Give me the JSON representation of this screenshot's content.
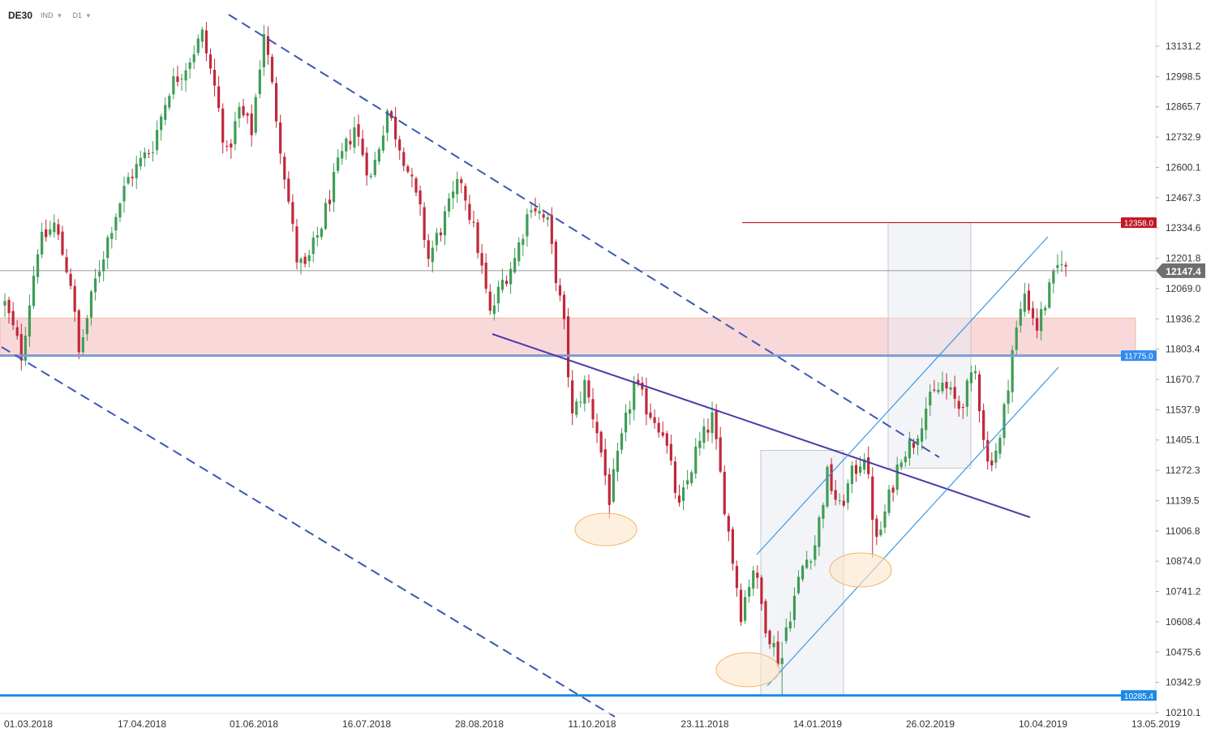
{
  "header": {
    "symbol": "DE30",
    "market": "IND",
    "interval": "D1"
  },
  "chart_data": {
    "type": "candlestick",
    "instrument": "DE30",
    "timeframe": "D1",
    "x_labels": [
      "01.03.2018",
      "17.04.2018",
      "01.06.2018",
      "16.07.2018",
      "28.08.2018",
      "11.10.2018",
      "23.11.2018",
      "14.01.2019",
      "26.02.2019",
      "10.04.2019",
      "13.05.2019"
    ],
    "y_ticks": [
      "13131.2",
      "12998.5",
      "12865.7",
      "12732.9",
      "12600.1",
      "12467.3",
      "12334.6",
      "12201.8",
      "12069.0",
      "11936.2",
      "11803.4",
      "11670.7",
      "11537.9",
      "11405.1",
      "11272.3",
      "11139.5",
      "11006.8",
      "10874.0",
      "10741.2",
      "10608.4",
      "10475.6",
      "10342.9",
      "10210.1"
    ],
    "ylim": [
      10210.1,
      13131.2
    ],
    "price_labels": {
      "resistance": "12358.0",
      "current": "12147.4",
      "support_zone": "11775.0",
      "low": "10285.4"
    },
    "colors": {
      "up": "#3f9d57",
      "down": "#c0283a",
      "resistance": "#c01624",
      "support_line": "#7e9bd4",
      "zone": "#f7c7cb",
      "low_line": "#1e88e5",
      "trendline": "#4b3aa8",
      "dashed_channel": "#3c57b4",
      "rising_channel": "#3a98e6"
    },
    "anchors": [
      {
        "i": 0,
        "c": 12000
      },
      {
        "i": 4,
        "c": 11780
      },
      {
        "i": 8,
        "c": 12250
      },
      {
        "i": 12,
        "c": 12350
      },
      {
        "i": 16,
        "c": 12100
      },
      {
        "i": 18,
        "c": 11780
      },
      {
        "i": 22,
        "c": 12100
      },
      {
        "i": 26,
        "c": 12350
      },
      {
        "i": 30,
        "c": 12550
      },
      {
        "i": 36,
        "c": 12700
      },
      {
        "i": 40,
        "c": 12950
      },
      {
        "i": 44,
        "c": 13050
      },
      {
        "i": 48,
        "c": 13180
      },
      {
        "i": 51,
        "c": 12950
      },
      {
        "i": 54,
        "c": 12650
      },
      {
        "i": 57,
        "c": 12850
      },
      {
        "i": 60,
        "c": 12760
      },
      {
        "i": 63,
        "c": 13200
      },
      {
        "i": 67,
        "c": 12700
      },
      {
        "i": 71,
        "c": 12200
      },
      {
        "i": 73,
        "c": 12150
      },
      {
        "i": 77,
        "c": 12350
      },
      {
        "i": 81,
        "c": 12600
      },
      {
        "i": 85,
        "c": 12780
      },
      {
        "i": 89,
        "c": 12550
      },
      {
        "i": 93,
        "c": 12850
      },
      {
        "i": 97,
        "c": 12650
      },
      {
        "i": 101,
        "c": 12400
      },
      {
        "i": 103,
        "c": 12200
      },
      {
        "i": 107,
        "c": 12380
      },
      {
        "i": 111,
        "c": 12550
      },
      {
        "i": 115,
        "c": 12250
      },
      {
        "i": 118,
        "c": 11950
      },
      {
        "i": 121,
        "c": 12100
      },
      {
        "i": 124,
        "c": 12200
      },
      {
        "i": 128,
        "c": 12450
      },
      {
        "i": 132,
        "c": 12350
      },
      {
        "i": 136,
        "c": 11900
      },
      {
        "i": 138,
        "c": 11500
      },
      {
        "i": 141,
        "c": 11650
      },
      {
        "i": 144,
        "c": 11450
      },
      {
        "i": 147,
        "c": 11150
      },
      {
        "i": 150,
        "c": 11400
      },
      {
        "i": 153,
        "c": 11650
      },
      {
        "i": 156,
        "c": 11550
      },
      {
        "i": 160,
        "c": 11450
      },
      {
        "i": 164,
        "c": 11100
      },
      {
        "i": 168,
        "c": 11350
      },
      {
        "i": 172,
        "c": 11500
      },
      {
        "i": 174,
        "c": 11250
      },
      {
        "i": 176,
        "c": 11000
      },
      {
        "i": 179,
        "c": 10650
      },
      {
        "i": 182,
        "c": 10850
      },
      {
        "i": 185,
        "c": 10600
      },
      {
        "i": 188,
        "c": 10450
      },
      {
        "i": 191,
        "c": 10650
      },
      {
        "i": 194,
        "c": 10850
      },
      {
        "i": 197,
        "c": 10950
      },
      {
        "i": 200,
        "c": 11250
      },
      {
        "i": 203,
        "c": 11100
      },
      {
        "i": 206,
        "c": 11250
      },
      {
        "i": 209,
        "c": 11350
      },
      {
        "i": 212,
        "c": 10950
      },
      {
        "i": 215,
        "c": 11150
      },
      {
        "i": 218,
        "c": 11350
      },
      {
        "i": 221,
        "c": 11400
      },
      {
        "i": 224,
        "c": 11550
      },
      {
        "i": 228,
        "c": 11650
      },
      {
        "i": 232,
        "c": 11550
      },
      {
        "i": 236,
        "c": 11700
      },
      {
        "i": 239,
        "c": 11300
      },
      {
        "i": 242,
        "c": 11400
      },
      {
        "i": 245,
        "c": 11800
      },
      {
        "i": 248,
        "c": 12050
      },
      {
        "i": 251,
        "c": 11900
      },
      {
        "i": 254,
        "c": 12060
      },
      {
        "i": 257,
        "c": 12210
      },
      {
        "i": 258,
        "c": 12147
      }
    ]
  }
}
